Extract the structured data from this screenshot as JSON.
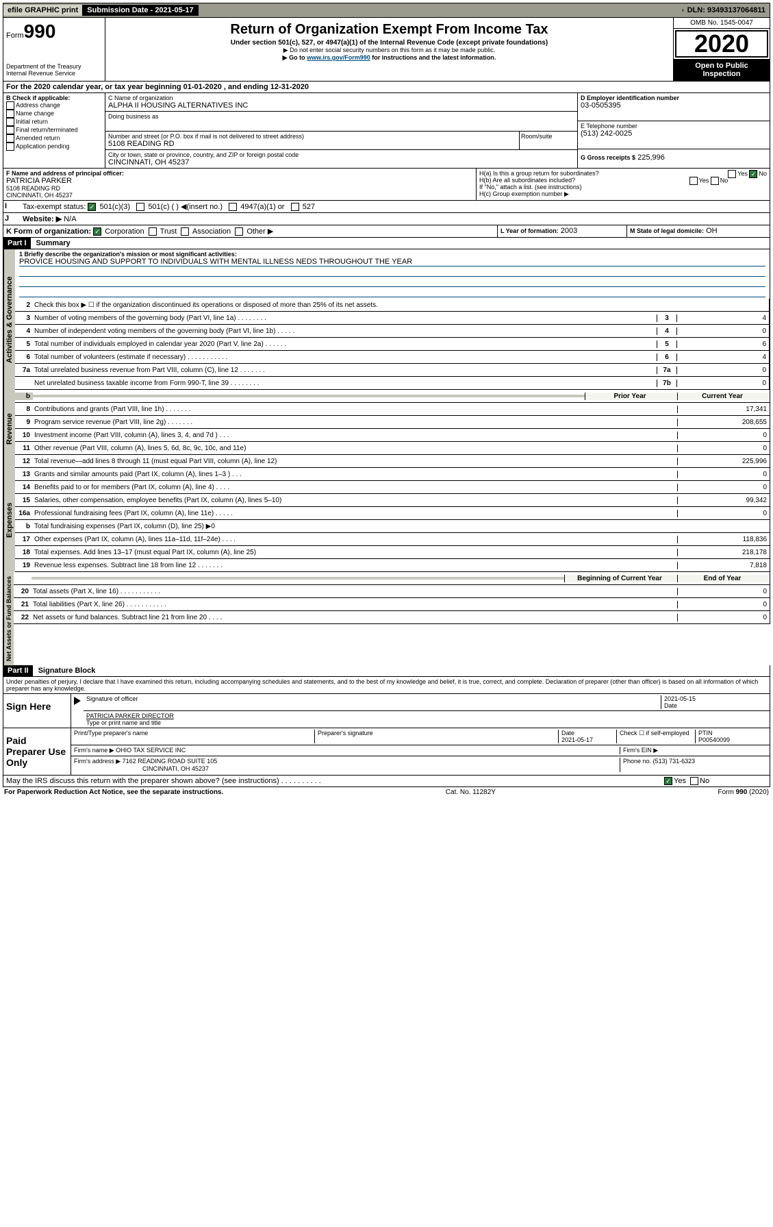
{
  "topbar": {
    "efile": "efile GRAPHIC print",
    "submission": "Submission Date - 2021-05-17",
    "dln": "DLN: 93493137064811"
  },
  "header": {
    "form_label": "Form",
    "form_number": "990",
    "dept": "Department of the Treasury\nInternal Revenue Service",
    "title": "Return of Organization Exempt From Income Tax",
    "subtitle": "Under section 501(c), 527, or 4947(a)(1) of the Internal Revenue Code (except private foundations)",
    "note1": "▶ Do not enter social security numbers on this form as it may be made public.",
    "note2_pre": "▶ Go to ",
    "note2_link": "www.irs.gov/Form990",
    "note2_post": " for instructions and the latest information.",
    "omb": "OMB No. 1545-0047",
    "year": "2020",
    "open": "Open to Public Inspection"
  },
  "line_a": "For the 2020 calendar year, or tax year beginning 01-01-2020    , and ending 12-31-2020",
  "section_b": {
    "label": "B Check if applicable:",
    "items": [
      "Address change",
      "Name change",
      "Initial return",
      "Final return/terminated",
      "Amended return",
      "Application pending"
    ]
  },
  "section_c": {
    "name_label": "C Name of organization",
    "name": "ALPHA II HOUSING ALTERNATIVES INC",
    "dba_label": "Doing business as",
    "addr_label": "Number and street (or P.O. box if mail is not delivered to street address)",
    "room": "Room/suite",
    "addr": "5108 READING RD",
    "city_label": "City or town, state or province, country, and ZIP or foreign postal code",
    "city": "CINCINNATI, OH  45237"
  },
  "section_d": {
    "label": "D Employer identification number",
    "value": "03-0505395"
  },
  "section_e": {
    "label": "E Telephone number",
    "value": "(513) 242-0025"
  },
  "section_g": {
    "label": "G Gross receipts $",
    "value": "225,996"
  },
  "section_f": {
    "label": "F  Name and address of principal officer:",
    "name": "PATRICIA PARKER",
    "addr1": "5108 READING RD",
    "addr2": "CINCINNATI, OH  45237"
  },
  "section_h": {
    "ha": "H(a)  Is this a group return for subordinates?",
    "hb": "H(b)  Are all subordinates included?",
    "hb_note": "If \"No,\" attach a list. (see instructions)",
    "hc": "H(c)  Group exemption number ▶",
    "yes": "Yes",
    "no": "No"
  },
  "section_i": {
    "label": "Tax-exempt status:",
    "opts": [
      "501(c)(3)",
      "501(c) (  ) ◀(insert no.)",
      "4947(a)(1) or",
      "527"
    ]
  },
  "section_j": {
    "label": "Website: ▶",
    "value": "N/A"
  },
  "section_k": {
    "label": "K Form of organization:",
    "opts": [
      "Corporation",
      "Trust",
      "Association",
      "Other ▶"
    ]
  },
  "section_l": {
    "label": "L Year of formation:",
    "value": "2003"
  },
  "section_m": {
    "label": "M State of legal domicile:",
    "value": "OH"
  },
  "part1_title": "Part I",
  "part1_sub": "Summary",
  "mission_label": "1  Briefly describe the organization's mission or most significant activities:",
  "mission": "PROVICE HOUSING AND SUPPORT TO INDIVIDUALS WITH MENTAL ILLNESS NEDS THROUGHOUT THE YEAR",
  "line2": "Check this box ▶ ☐  if the organization discontinued its operations or disposed of more than 25% of its net assets.",
  "governance_rows": [
    {
      "no": "3",
      "text": "Number of voting members of the governing body (Part VI, line 1a)  .   .   .   .   .   .   .   .",
      "lab": "3",
      "val": "4"
    },
    {
      "no": "4",
      "text": "Number of independent voting members of the governing body (Part VI, line 1b)  .   .   .   .   .",
      "lab": "4",
      "val": "0"
    },
    {
      "no": "5",
      "text": "Total number of individuals employed in calendar year 2020 (Part V, line 2a)  .   .   .   .   .   .",
      "lab": "5",
      "val": "6"
    },
    {
      "no": "6",
      "text": "Total number of volunteers (estimate if necessary)  .   .   .   .   .   .   .   .   .   .   .",
      "lab": "6",
      "val": "4"
    },
    {
      "no": "7a",
      "text": "Total unrelated business revenue from Part VIII, column (C), line 12  .   .   .   .   .   .   .",
      "lab": "7a",
      "val": "0"
    },
    {
      "no": "",
      "text": "Net unrelated business taxable income from Form 990-T, line 39  .   .   .   .   .   .   .   .",
      "lab": "7b",
      "val": "0"
    }
  ],
  "col_headers": {
    "prior": "Prior Year",
    "current": "Current Year"
  },
  "revenue_rows": [
    {
      "no": "8",
      "text": "Contributions and grants (Part VIII, line 1h)  .   .   .   .   .   .   .",
      "prior": "",
      "cur": "17,341"
    },
    {
      "no": "9",
      "text": "Program service revenue (Part VIII, line 2g)  .   .   .   .   .   .   .",
      "prior": "",
      "cur": "208,655"
    },
    {
      "no": "10",
      "text": "Investment income (Part VIII, column (A), lines 3, 4, and 7d )  .   .   .",
      "prior": "",
      "cur": "0"
    },
    {
      "no": "11",
      "text": "Other revenue (Part VIII, column (A), lines 5, 6d, 8c, 9c, 10c, and 11e)",
      "prior": "",
      "cur": "0"
    },
    {
      "no": "12",
      "text": "Total revenue—add lines 8 through 11 (must equal Part VIII, column (A), line 12)",
      "prior": "",
      "cur": "225,996"
    }
  ],
  "expense_rows": [
    {
      "no": "13",
      "text": "Grants and similar amounts paid (Part IX, column (A), lines 1–3 )  .   .   .",
      "prior": "",
      "cur": "0"
    },
    {
      "no": "14",
      "text": "Benefits paid to or for members (Part IX, column (A), line 4)  .   .   .   .",
      "prior": "",
      "cur": "0"
    },
    {
      "no": "15",
      "text": "Salaries, other compensation, employee benefits (Part IX, column (A), lines 5–10)",
      "prior": "",
      "cur": "99,342"
    },
    {
      "no": "16a",
      "text": "Professional fundraising fees (Part IX, column (A), line 11e)  .   .   .   .   .",
      "prior": "",
      "cur": "0"
    },
    {
      "no": "b",
      "text": "Total fundraising expenses (Part IX, column (D), line 25) ▶0",
      "prior": "shaded",
      "cur": "shaded"
    },
    {
      "no": "17",
      "text": "Other expenses (Part IX, column (A), lines 11a–11d, 11f–24e)  .   .   .   .",
      "prior": "",
      "cur": "118,836"
    },
    {
      "no": "18",
      "text": "Total expenses. Add lines 13–17 (must equal Part IX, column (A), line 25)",
      "prior": "",
      "cur": "218,178"
    },
    {
      "no": "19",
      "text": "Revenue less expenses. Subtract line 18 from line 12  .   .   .   .   .   .   .",
      "prior": "",
      "cur": "7,818"
    }
  ],
  "col_headers2": {
    "begin": "Beginning of Current Year",
    "end": "End of Year"
  },
  "netassets_rows": [
    {
      "no": "20",
      "text": "Total assets (Part X, line 16)  .   .   .   .   .   .   .   .   .   .   .",
      "b": "",
      "e": "0"
    },
    {
      "no": "21",
      "text": "Total liabilities (Part X, line 26)  .   .   .   .   .   .   .   .   .   .   .",
      "b": "",
      "e": "0"
    },
    {
      "no": "22",
      "text": "Net assets or fund balances. Subtract line 21 from line 20  .   .   .   .",
      "b": "",
      "e": "0"
    }
  ],
  "part2_title": "Part II",
  "part2_sub": "Signature Block",
  "perjury": "Under penalties of perjury, I declare that I have examined this return, including accompanying schedules and statements, and to the best of my knowledge and belief, it is true, correct, and complete. Declaration of preparer (other than officer) is based on all information of which preparer has any knowledge.",
  "sign": {
    "label": "Sign Here",
    "sig_officer": "Signature of officer",
    "date": "2021-05-15",
    "date_label": "Date",
    "name": "PATRICIA PARKER  DIRECTOR",
    "name_label": "Type or print name and title"
  },
  "paid": {
    "label": "Paid Preparer Use Only",
    "prep_name_label": "Print/Type preparer's name",
    "prep_sig_label": "Preparer's signature",
    "date_label": "Date",
    "date": "2021-05-17",
    "check_label": "Check ☐ if self-employed",
    "ptin_label": "PTIN",
    "ptin": "P00540099",
    "firm_name_label": "Firm's name    ▶",
    "firm_name": "OHIO TAX SERVICE INC",
    "firm_ein_label": "Firm's EIN ▶",
    "firm_addr_label": "Firm's address ▶",
    "firm_addr": "7162 READING ROAD SUITE 105",
    "firm_city": "CINCINNATI, OH  45237",
    "phone_label": "Phone no.",
    "phone": "(513) 731-6323"
  },
  "discuss": "May the IRS discuss this return with the preparer shown above? (see instructions)   .   .   .   .   .   .   .   .   .   .",
  "discuss_yes": "Yes",
  "discuss_no": "No",
  "footer": {
    "paperwork": "For Paperwork Reduction Act Notice, see the separate instructions.",
    "cat": "Cat. No. 11282Y",
    "form": "Form 990 (2020)"
  },
  "vtabs": {
    "gov": "Activities & Governance",
    "rev": "Revenue",
    "exp": "Expenses",
    "net": "Net Assets or Fund Balances"
  }
}
